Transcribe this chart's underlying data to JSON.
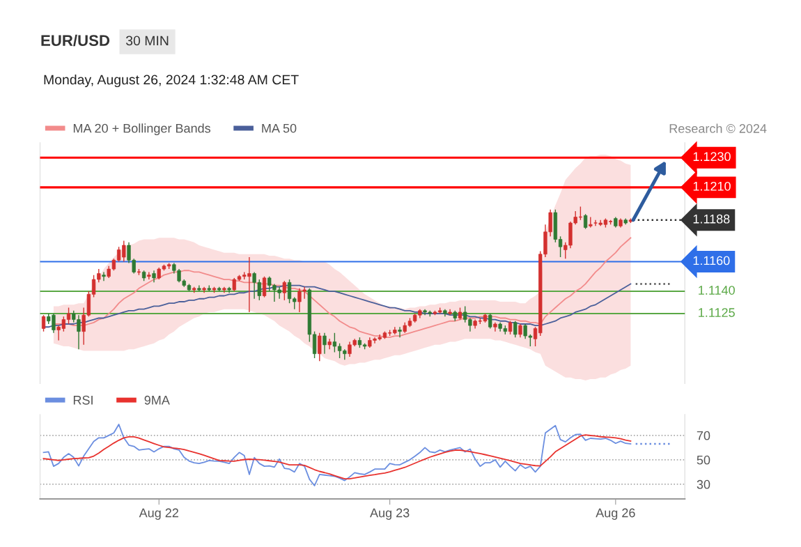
{
  "chart_data": [
    {
      "type": "candlestick",
      "title": "EUR/USD",
      "subtitle": "30 MIN",
      "annotations": [
        "Monday, August 26, 2024 1:32:48 AM CET",
        "Research © 2024"
      ],
      "categories": [
        null,
        null,
        null,
        null,
        null,
        null,
        null,
        null,
        null,
        null,
        null,
        null,
        null,
        null,
        null,
        null,
        null,
        null,
        null,
        null,
        null,
        null,
        null,
        null,
        null,
        null,
        null,
        null,
        null,
        null,
        null,
        null,
        null,
        null,
        null,
        null,
        null,
        null,
        null,
        null,
        null,
        null,
        null,
        null,
        null,
        null,
        null,
        null,
        null,
        null,
        null,
        null,
        null,
        null,
        null,
        null,
        null,
        null,
        null,
        null,
        null,
        null,
        null,
        null,
        null,
        null,
        null,
        null,
        null,
        null,
        null,
        null,
        null,
        null,
        null,
        null,
        null,
        null,
        null,
        null,
        null,
        null,
        null,
        null,
        null,
        null,
        null,
        null,
        null,
        null,
        null,
        null,
        null,
        null,
        null,
        null,
        null,
        null,
        null,
        null,
        null,
        null,
        null,
        null,
        null,
        null,
        null,
        null,
        null,
        null,
        null,
        null,
        null,
        null,
        null,
        null,
        null,
        null,
        null,
        null,
        null,
        null,
        null,
        null,
        null,
        null
      ],
      "ohlc": [
        [
          1.1115,
          1.1124,
          1.1113,
          1.1123
        ],
        [
          1.1123,
          1.1125,
          1.1118,
          1.112
        ],
        [
          1.1124,
          1.1125,
          1.1112,
          1.1114
        ],
        [
          1.1114,
          1.1117,
          1.1107,
          1.1116
        ],
        [
          1.1115,
          1.1123,
          1.1113,
          1.1121
        ],
        [
          1.1121,
          1.1129,
          1.1118,
          1.1125
        ],
        [
          1.1125,
          1.1127,
          1.1119,
          1.1121
        ],
        [
          1.1121,
          1.1124,
          1.1101,
          1.1113
        ],
        [
          1.1113,
          1.1129,
          1.1104,
          1.1124
        ],
        [
          1.1124,
          1.114,
          1.1123,
          1.1138
        ],
        [
          1.1138,
          1.1151,
          1.1136,
          1.1148
        ],
        [
          1.1148,
          1.1155,
          1.1146,
          1.1152
        ],
        [
          1.1151,
          1.1153,
          1.1147,
          1.115
        ],
        [
          1.115,
          1.1157,
          1.1149,
          1.1155
        ],
        [
          1.1155,
          1.1162,
          1.1154,
          1.1161
        ],
        [
          1.1161,
          1.117,
          1.116,
          1.1168
        ],
        [
          1.1163,
          1.1174,
          1.116,
          1.1171
        ],
        [
          1.1171,
          1.1173,
          1.1159,
          1.1161
        ],
        [
          1.1161,
          1.1162,
          1.1152,
          1.1153
        ],
        [
          1.1153,
          1.1155,
          1.1151,
          1.1153
        ],
        [
          1.1153,
          1.1154,
          1.1147,
          1.1149
        ],
        [
          1.115,
          1.1153,
          1.1148,
          1.1151
        ],
        [
          1.1152,
          1.1154,
          1.1146,
          1.1149
        ],
        [
          1.1149,
          1.1156,
          1.1148,
          1.1155
        ],
        [
          1.1155,
          1.1158,
          1.1154,
          1.1157
        ],
        [
          1.1157,
          1.1159,
          1.1155,
          1.1158
        ],
        [
          1.1158,
          1.1159,
          1.1152,
          1.1154
        ],
        [
          1.1154,
          1.1155,
          1.1146,
          1.1147
        ],
        [
          1.1147,
          1.1148,
          1.1143,
          1.1144
        ],
        [
          1.1144,
          1.1145,
          1.114,
          1.1141
        ],
        [
          1.1141,
          1.1143,
          1.1139,
          1.1142
        ],
        [
          1.1142,
          1.1144,
          1.114,
          1.1141
        ],
        [
          1.1141,
          1.1143,
          1.1139,
          1.1142
        ],
        [
          1.1142,
          1.1144,
          1.114,
          1.1141
        ],
        [
          1.1141,
          1.1143,
          1.1139,
          1.1142
        ],
        [
          1.1142,
          1.1143,
          1.114,
          1.1141
        ],
        [
          1.1141,
          1.1143,
          1.1139,
          1.1142
        ],
        [
          1.1142,
          1.1143,
          1.1139,
          1.1141
        ],
        [
          1.1141,
          1.1149,
          1.114,
          1.1148
        ],
        [
          1.1148,
          1.1151,
          1.1147,
          1.115
        ],
        [
          1.115,
          1.1153,
          1.1148,
          1.1151
        ],
        [
          1.115,
          1.1163,
          1.1126,
          1.1152
        ],
        [
          1.1152,
          1.1153,
          1.1135,
          1.1146
        ],
        [
          1.1146,
          1.1148,
          1.1134,
          1.1137
        ],
        [
          1.1137,
          1.115,
          1.1136,
          1.1149
        ],
        [
          1.1149,
          1.115,
          1.114,
          1.1144
        ],
        [
          1.1144,
          1.1145,
          1.1133,
          1.1141
        ],
        [
          1.1141,
          1.1143,
          1.1135,
          1.1139
        ],
        [
          1.1139,
          1.1147,
          1.1134,
          1.1146
        ],
        [
          1.1146,
          1.1148,
          1.1132,
          1.1135
        ],
        [
          1.1135,
          1.1136,
          1.1128,
          1.1133
        ],
        [
          1.1133,
          1.1142,
          1.1126,
          1.114
        ],
        [
          1.114,
          1.1143,
          1.1135,
          1.1141
        ],
        [
          1.1141,
          1.1142,
          1.1106,
          1.1111
        ],
        [
          1.1111,
          1.1113,
          1.1095,
          1.1098
        ],
        [
          1.1098,
          1.1112,
          1.1093,
          1.111
        ],
        [
          1.111,
          1.1112,
          1.1098,
          1.1104
        ],
        [
          1.1104,
          1.1108,
          1.1101,
          1.1106
        ],
        [
          1.1106,
          1.1112,
          1.1099,
          1.1103
        ],
        [
          1.1103,
          1.1105,
          1.1095,
          1.11
        ],
        [
          1.11,
          1.1101,
          1.1094,
          1.1098
        ],
        [
          1.1098,
          1.1106,
          1.1096,
          1.1104
        ],
        [
          1.1104,
          1.1108,
          1.1103,
          1.1107
        ],
        [
          1.1107,
          1.1109,
          1.1102,
          1.1104
        ],
        [
          1.1104,
          1.1105,
          1.1101,
          1.1103
        ],
        [
          1.1103,
          1.1109,
          1.1102,
          1.1107
        ],
        [
          1.1107,
          1.1109,
          1.1105,
          1.1108
        ],
        [
          1.1108,
          1.1111,
          1.1107,
          1.1109
        ],
        [
          1.1109,
          1.1113,
          1.1108,
          1.1112
        ],
        [
          1.1112,
          1.1114,
          1.111,
          1.1112
        ],
        [
          1.1112,
          1.1116,
          1.1111,
          1.1114
        ],
        [
          1.1114,
          1.1116,
          1.1109,
          1.1113
        ],
        [
          1.1113,
          1.1119,
          1.1112,
          1.1117
        ],
        [
          1.1117,
          1.1122,
          1.1116,
          1.112
        ],
        [
          1.112,
          1.1125,
          1.1119,
          1.1124
        ],
        [
          1.1124,
          1.1128,
          1.1122,
          1.1127
        ],
        [
          1.1127,
          1.1128,
          1.1124,
          1.1126
        ],
        [
          1.1126,
          1.1127,
          1.1123,
          1.1125
        ],
        [
          1.1125,
          1.1127,
          1.1124,
          1.1126
        ],
        [
          1.1126,
          1.1129,
          1.1125,
          1.1127
        ],
        [
          1.1127,
          1.1128,
          1.1123,
          1.1125
        ],
        [
          1.1125,
          1.1128,
          1.1124,
          1.1126
        ],
        [
          1.1126,
          1.1127,
          1.112,
          1.1122
        ],
        [
          1.1122,
          1.1129,
          1.1121,
          1.1126
        ],
        [
          1.1126,
          1.113,
          1.1119,
          1.1121
        ],
        [
          1.1121,
          1.1122,
          1.1113,
          1.1117
        ],
        [
          1.1117,
          1.1121,
          1.1115,
          1.112
        ],
        [
          1.112,
          1.1122,
          1.1118,
          1.112
        ],
        [
          1.112,
          1.1125,
          1.1119,
          1.1124
        ],
        [
          1.1124,
          1.1125,
          1.1115,
          1.1116
        ],
        [
          1.1116,
          1.1119,
          1.1113,
          1.1118
        ],
        [
          1.1118,
          1.1119,
          1.1113,
          1.1115
        ],
        [
          1.1115,
          1.1117,
          1.1111,
          1.1113
        ],
        [
          1.1113,
          1.112,
          1.1111,
          1.1119
        ],
        [
          1.1119,
          1.112,
          1.1109,
          1.1111
        ],
        [
          1.1111,
          1.1118,
          1.1109,
          1.1117
        ],
        [
          1.1117,
          1.1118,
          1.1108,
          1.111
        ],
        [
          1.111,
          1.1111,
          1.1103,
          1.1109
        ],
        [
          1.1108,
          1.1116,
          1.1103,
          1.1115
        ],
        [
          1.1112,
          1.1167,
          1.111,
          1.1165
        ],
        [
          1.1165,
          1.1185,
          1.1163,
          1.118
        ],
        [
          1.118,
          1.1195,
          1.1177,
          1.1193
        ],
        [
          1.1193,
          1.1195,
          1.1173,
          1.1175
        ],
        [
          1.1175,
          1.1177,
          1.1163,
          1.117
        ],
        [
          1.1168,
          1.1173,
          1.1162,
          1.1171
        ],
        [
          1.1171,
          1.1187,
          1.1169,
          1.1186
        ],
        [
          1.1186,
          1.1194,
          1.1185,
          1.119
        ],
        [
          1.119,
          1.1197,
          1.1188,
          1.119
        ],
        [
          1.1191,
          1.1192,
          1.1182,
          1.1183
        ],
        [
          1.1184,
          1.119,
          1.1183,
          1.1185
        ],
        [
          1.1186,
          1.1188,
          1.1184,
          1.1186
        ],
        [
          1.1185,
          1.1188,
          1.1184,
          1.1186
        ],
        [
          1.1185,
          1.1189,
          1.1183,
          1.1188
        ],
        [
          1.1187,
          1.1188,
          1.1185,
          1.1187
        ],
        [
          1.1189,
          1.119,
          1.1183,
          1.1184
        ],
        [
          1.1184,
          1.1189,
          1.1183,
          1.1188
        ],
        [
          1.1188,
          1.1189,
          1.1185,
          1.1186
        ],
        [
          1.1187,
          1.1189,
          1.1186,
          1.1188
        ],
        null,
        null,
        null,
        null,
        null,
        null,
        null,
        null
      ],
      "series": [
        {
          "name": "MA 20 + Bollinger Bands",
          "type": "line",
          "color": "#f28b8b",
          "values": [
            null,
            null,
            1.1118,
            1.1118,
            1.1118,
            1.1118,
            1.1117,
            1.1117,
            1.1117,
            1.1118,
            1.1119,
            1.1121,
            1.1122,
            1.1125,
            1.1128,
            1.1132,
            1.1135,
            1.1137,
            1.1139,
            1.1142,
            1.1144,
            1.1146,
            1.1148,
            1.1149,
            1.1151,
            1.1152,
            1.1153,
            1.1153,
            1.1154,
            1.1154,
            1.1153,
            1.1153,
            1.1152,
            1.1151,
            1.115,
            1.1149,
            1.1148,
            1.1148,
            1.1147,
            1.1147,
            1.1146,
            1.1146,
            1.1146,
            1.1145,
            1.1145,
            1.1145,
            1.1144,
            1.1144,
            1.1143,
            1.1142,
            1.1142,
            1.1141,
            1.114,
            1.1137,
            1.1134,
            1.1131,
            1.1128,
            1.1125,
            1.1123,
            1.112,
            1.1118,
            1.1116,
            1.1115,
            1.1113,
            1.1112,
            1.1111,
            1.111,
            1.111,
            1.1109,
            1.1109,
            1.111,
            1.111,
            1.1111,
            1.1112,
            1.1113,
            1.1114,
            1.1115,
            1.1116,
            1.1117,
            1.1118,
            1.1119,
            1.112,
            1.112,
            1.1121,
            1.1122,
            1.1122,
            1.1122,
            1.1123,
            1.1123,
            1.1123,
            1.1123,
            1.1122,
            1.1122,
            1.1121,
            1.1121,
            1.112,
            1.112,
            1.1119,
            1.1119,
            1.1118,
            1.1123,
            1.1126,
            1.1129,
            1.1132,
            1.1135,
            1.1137,
            1.114,
            1.1142,
            1.1145,
            1.1149,
            1.1153,
            1.1156,
            1.116,
            1.1163,
            1.1166,
            1.117,
            1.1173,
            1.1176,
            null,
            null,
            null,
            null,
            null,
            null,
            null,
            null
          ],
          "upper": [
            null,
            null,
            1.113,
            1.113,
            1.1131,
            1.1131,
            1.1131,
            1.1132,
            1.1132,
            1.1138,
            1.1144,
            1.1149,
            1.1155,
            1.1159,
            1.1163,
            1.1166,
            1.117,
            1.1171,
            1.1172,
            1.1174,
            1.1175,
            1.1175,
            1.1175,
            1.1176,
            1.1176,
            1.1176,
            1.1176,
            1.1175,
            1.1175,
            1.1174,
            1.1173,
            1.1171,
            1.117,
            1.1169,
            1.1168,
            1.1167,
            1.1166,
            1.1166,
            1.1166,
            1.1165,
            1.1165,
            1.1165,
            1.1165,
            1.1165,
            1.1165,
            1.1164,
            1.1164,
            1.1163,
            1.1162,
            1.1162,
            1.1161,
            1.1161,
            1.116,
            1.116,
            1.116,
            1.116,
            1.116,
            1.1158,
            1.1155,
            1.1153,
            1.115,
            1.1147,
            1.1144,
            1.1141,
            1.1138,
            1.1136,
            1.1134,
            1.1132,
            1.113,
            1.113,
            1.1129,
            1.1129,
            1.1128,
            1.1129,
            1.1129,
            1.113,
            1.113,
            1.1131,
            1.1131,
            1.1132,
            1.1132,
            1.1133,
            1.1133,
            1.1134,
            1.1134,
            1.1134,
            1.1134,
            1.1134,
            1.1134,
            1.1134,
            1.1134,
            1.1133,
            1.1133,
            1.1133,
            1.1133,
            1.1132,
            1.1132,
            1.1135,
            1.1137,
            1.114,
            1.118,
            1.1189,
            1.1198,
            1.1206,
            1.1215,
            1.1219,
            1.1223,
            1.1226,
            1.123,
            1.1231,
            1.1231,
            1.1232,
            1.1232,
            1.1231,
            1.1229,
            1.1228,
            1.1226,
            1.1225,
            null,
            null,
            null,
            null,
            null,
            null,
            null,
            null
          ],
          "lower": [
            null,
            null,
            1.1105,
            1.1104,
            1.1103,
            1.1103,
            1.1102,
            1.1101,
            1.11,
            1.11,
            1.11,
            1.11,
            1.11,
            1.11,
            1.11,
            1.11,
            1.11,
            1.1101,
            1.1101,
            1.1102,
            1.1103,
            1.1104,
            1.1105,
            1.1107,
            1.1108,
            1.1111,
            1.1113,
            1.1116,
            1.1118,
            1.112,
            1.1122,
            1.1123,
            1.1125,
            1.1126,
            1.1126,
            1.1127,
            1.1128,
            1.1128,
            1.1128,
            1.1128,
            1.1128,
            1.1127,
            1.1126,
            1.1125,
            1.1124,
            1.1122,
            1.112,
            1.1117,
            1.1115,
            1.1113,
            1.111,
            1.1108,
            1.1105,
            1.1103,
            1.11,
            1.1098,
            1.1095,
            1.1094,
            1.1093,
            1.1091,
            1.109,
            1.1091,
            1.1091,
            1.1092,
            1.1092,
            1.1093,
            1.1094,
            1.1094,
            1.1095,
            1.1096,
            1.1097,
            1.1097,
            1.1098,
            1.1099,
            1.11,
            1.1101,
            1.1102,
            1.1103,
            1.1104,
            1.1104,
            1.1105,
            1.1106,
            1.1106,
            1.1107,
            1.1108,
            1.1108,
            1.1108,
            1.1108,
            1.1108,
            1.1108,
            1.1107,
            1.1107,
            1.1106,
            1.1105,
            1.1104,
            1.1103,
            1.1102,
            1.1101,
            1.1099,
            1.1098,
            1.109,
            1.1088,
            1.1086,
            1.1084,
            1.1082,
            1.1082,
            1.1081,
            1.1081,
            1.108,
            1.1081,
            1.1081,
            1.1082,
            1.1082,
            1.1084,
            1.1085,
            1.1087,
            1.1088,
            1.109,
            null,
            null,
            null,
            null,
            null,
            null,
            null,
            null
          ]
        },
        {
          "name": "MA 50",
          "type": "line",
          "color": "#4a5f9a",
          "values": [
            1.1116,
            1.1116,
            1.1117,
            1.1117,
            1.1118,
            1.1118,
            1.1118,
            1.1119,
            1.1119,
            1.112,
            1.1121,
            1.1122,
            1.1122,
            1.1123,
            1.1124,
            1.1125,
            1.1126,
            1.1127,
            1.1127,
            1.1128,
            1.1128,
            1.1129,
            1.113,
            1.113,
            1.1131,
            1.1132,
            1.1132,
            1.1133,
            1.1133,
            1.1134,
            1.1134,
            1.1135,
            1.1135,
            1.1136,
            1.1136,
            1.1137,
            1.1137,
            1.1138,
            1.1138,
            1.1139,
            1.1139,
            1.114,
            1.114,
            1.1141,
            1.1142,
            1.1142,
            1.1143,
            1.1143,
            1.1144,
            1.1144,
            1.1144,
            1.1144,
            1.1143,
            1.1143,
            1.1143,
            1.1142,
            1.1141,
            1.114,
            1.114,
            1.1139,
            1.1138,
            1.1137,
            1.1136,
            1.1135,
            1.1134,
            1.1133,
            1.1132,
            1.1131,
            1.113,
            1.1129,
            1.1129,
            1.1128,
            1.1127,
            1.1127,
            1.1126,
            1.1126,
            1.1125,
            1.1125,
            1.1125,
            1.1125,
            1.1125,
            1.1124,
            1.1124,
            1.1124,
            1.1124,
            1.1123,
            1.1123,
            1.1122,
            1.1122,
            1.1121,
            1.1121,
            1.112,
            1.112,
            1.1119,
            1.1119,
            1.1118,
            1.1118,
            1.1118,
            1.1117,
            1.1117,
            1.1118,
            1.1119,
            1.112,
            1.1122,
            1.1123,
            1.1124,
            1.1126,
            1.1127,
            1.1128,
            1.113,
            1.1131,
            1.1133,
            1.1135,
            1.1137,
            1.1139,
            1.1141,
            1.1143,
            1.1145,
            null,
            null,
            null,
            null,
            null,
            null,
            null,
            null
          ]
        },
        {
          "type": "line",
          "color": "#555555",
          "line_style": "dotted",
          "values": [
            null,
            null,
            null,
            null,
            null,
            null,
            null,
            null,
            null,
            null,
            null,
            null,
            null,
            null,
            null,
            null,
            null,
            null,
            null,
            null,
            null,
            null,
            null,
            null,
            null,
            null,
            null,
            null,
            null,
            null,
            null,
            null,
            null,
            null,
            null,
            null,
            null,
            null,
            null,
            null,
            null,
            null,
            null,
            null,
            null,
            null,
            null,
            null,
            null,
            null,
            null,
            null,
            null,
            null,
            null,
            null,
            null,
            null,
            null,
            null,
            null,
            null,
            null,
            null,
            null,
            null,
            null,
            null,
            null,
            null,
            null,
            null,
            null,
            null,
            null,
            null,
            null,
            null,
            null,
            null,
            null,
            null,
            null,
            null,
            null,
            null,
            null,
            null,
            null,
            null,
            null,
            null,
            null,
            null,
            null,
            null,
            null,
            null,
            null,
            null,
            null,
            null,
            null,
            null,
            null,
            null,
            null,
            null,
            null,
            null,
            null,
            null,
            null,
            null,
            null,
            null,
            null,
            null,
            1.1145,
            null,
            null,
            null,
            null,
            null,
            null,
            1.1145
          ]
        }
      ],
      "ref_lines": [
        {
          "axis": "y",
          "value": 1.123,
          "label": "1.1230",
          "color": "#ff0000",
          "line_style": "solid"
        },
        {
          "axis": "y",
          "value": 1.121,
          "label": "1.1210",
          "color": "#ff0000",
          "line_style": "solid"
        },
        {
          "axis": "y",
          "value": 1.1188,
          "label": "1.1188",
          "color": "#333333",
          "line_style": "dotted"
        },
        {
          "axis": "y",
          "value": 1.116,
          "label": "1.1160",
          "color": "#2f6fe8",
          "line_style": "solid"
        },
        {
          "axis": "y",
          "value": 1.114,
          "label": "1.1140",
          "color": "#5aa845",
          "line_style": "solid"
        },
        {
          "axis": "y",
          "value": 1.1125,
          "label": "1.1125",
          "color": "#5aa845",
          "line_style": "solid"
        }
      ],
      "ylim": [
        1.1078,
        1.124
      ],
      "legend": "top left"
    },
    {
      "type": "line",
      "categories": [
        null,
        null,
        null,
        null,
        null,
        null,
        null,
        null,
        null,
        null,
        null,
        null,
        null,
        null,
        null,
        null,
        null,
        null,
        null,
        null,
        null,
        null,
        null,
        "Aug 22",
        null,
        null,
        null,
        null,
        null,
        null,
        null,
        null,
        null,
        null,
        null,
        null,
        null,
        null,
        null,
        null,
        null,
        null,
        null,
        null,
        null,
        null,
        null,
        null,
        null,
        null,
        null,
        null,
        null,
        null,
        null,
        null,
        null,
        null,
        null,
        null,
        null,
        null,
        null,
        null,
        null,
        null,
        null,
        null,
        null,
        "Aug 23",
        null,
        null,
        null,
        null,
        null,
        null,
        null,
        null,
        null,
        null,
        null,
        null,
        null,
        null,
        null,
        null,
        null,
        null,
        null,
        null,
        null,
        null,
        null,
        null,
        null,
        null,
        null,
        null,
        null,
        null,
        null,
        null,
        null,
        null,
        null,
        null,
        null,
        null,
        null,
        null,
        null,
        null,
        null,
        null,
        "Aug 26",
        null,
        null,
        null,
        null,
        null,
        null,
        null,
        null,
        null,
        null,
        null
      ],
      "series": [
        {
          "name": "RSI",
          "color": "#6b8ee0",
          "values": [
            56,
            56.5,
            44.7,
            47,
            52,
            55,
            52,
            45,
            53,
            59,
            65,
            68,
            68,
            70,
            72,
            79,
            68,
            62,
            61,
            58,
            58.5,
            59,
            56.5,
            59,
            61,
            61,
            59,
            58,
            52,
            49,
            47.6,
            47,
            48,
            49.4,
            49,
            48.8,
            48,
            47,
            52,
            56,
            53.5,
            38,
            51.8,
            47,
            44.7,
            45,
            44,
            50.6,
            43,
            42.4,
            40,
            47,
            44.7,
            34,
            28.8,
            38,
            37.5,
            37,
            36.5,
            35,
            33,
            36,
            39.4,
            38.5,
            38,
            40,
            42.4,
            42.4,
            42.4,
            47,
            46,
            45.9,
            48,
            50,
            52.9,
            56,
            60,
            56.5,
            55.9,
            58,
            56.5,
            58,
            59,
            60,
            56.5,
            58.8,
            50.6,
            44.7,
            47.6,
            47.6,
            50,
            44,
            48.8,
            44.7,
            41,
            45.9,
            43,
            44.7,
            40,
            44.7,
            72,
            75,
            78,
            66.5,
            64.7,
            68,
            70.6,
            71,
            66,
            67.6,
            67.3,
            67,
            67.6,
            66,
            63.5,
            65.3,
            63.5,
            63,
            null,
            null,
            null,
            null,
            null,
            null,
            null,
            null
          ]
        },
        {
          "name": "9MA",
          "color": "#e8322e",
          "values": [
            51,
            50.5,
            50,
            49.5,
            50,
            50.5,
            51,
            51.2,
            51.5,
            51.7,
            53,
            55.5,
            58.5,
            61,
            63.7,
            66,
            68,
            68.8,
            68.8,
            67.8,
            66.3,
            64.8,
            63.3,
            61.9,
            60.6,
            60.1,
            59.6,
            59.1,
            58.4,
            57.2,
            56.1,
            55,
            53.7,
            52.3,
            50.9,
            49.4,
            49.2,
            49,
            48.9,
            49.5,
            50.2,
            50.5,
            50.3,
            50.1,
            49.7,
            49.2,
            48.7,
            48.1,
            47,
            45.9,
            45.9,
            45.9,
            45.4,
            43.7,
            41.9,
            40.5,
            39.5,
            38.4,
            37,
            35.7,
            34.4,
            34.4,
            35.1,
            35.9,
            36.6,
            37.3,
            37.9,
            38.6,
            39.2,
            40.2,
            41.4,
            42.6,
            43.8,
            45.5,
            47.2,
            48.9,
            50.6,
            52.2,
            53.5,
            54.8,
            56.1,
            57.1,
            57.9,
            57.9,
            57.3,
            56.7,
            55.9,
            55.1,
            54.2,
            53.3,
            52.3,
            51.3,
            50.3,
            49.3,
            48.2,
            47,
            46.4,
            45.8,
            45.2,
            45,
            48.7,
            52.4,
            56.6,
            59.2,
            61.8,
            64.3,
            66.9,
            69.5,
            70.4,
            69.9,
            69.5,
            68.9,
            68.6,
            68.4,
            68,
            67.2,
            66.1,
            65.3,
            null,
            null,
            null,
            null,
            null,
            null,
            null,
            null
          ]
        },
        {
          "color": "#6b8ee0",
          "line_style": "dotted",
          "values": [
            null,
            null,
            null,
            null,
            null,
            null,
            null,
            null,
            null,
            null,
            null,
            null,
            null,
            null,
            null,
            null,
            null,
            null,
            null,
            null,
            null,
            null,
            null,
            null,
            null,
            null,
            null,
            null,
            null,
            null,
            null,
            null,
            null,
            null,
            null,
            null,
            null,
            null,
            null,
            null,
            null,
            null,
            null,
            null,
            null,
            null,
            null,
            null,
            null,
            null,
            null,
            null,
            null,
            null,
            null,
            null,
            null,
            null,
            null,
            null,
            null,
            null,
            null,
            null,
            null,
            null,
            null,
            null,
            null,
            null,
            null,
            null,
            null,
            null,
            null,
            null,
            null,
            null,
            null,
            null,
            null,
            null,
            null,
            null,
            null,
            null,
            null,
            null,
            null,
            null,
            null,
            null,
            null,
            null,
            null,
            null,
            null,
            null,
            null,
            null,
            null,
            null,
            null,
            null,
            null,
            null,
            null,
            null,
            null,
            null,
            null,
            null,
            null,
            null,
            null,
            null,
            null,
            null,
            63,
            null,
            null,
            null,
            null,
            null,
            null,
            63
          ]
        }
      ],
      "ylim": [
        18,
        87
      ],
      "yticks": [
        30,
        50,
        70
      ],
      "grid": "y",
      "legend": "top left"
    }
  ]
}
